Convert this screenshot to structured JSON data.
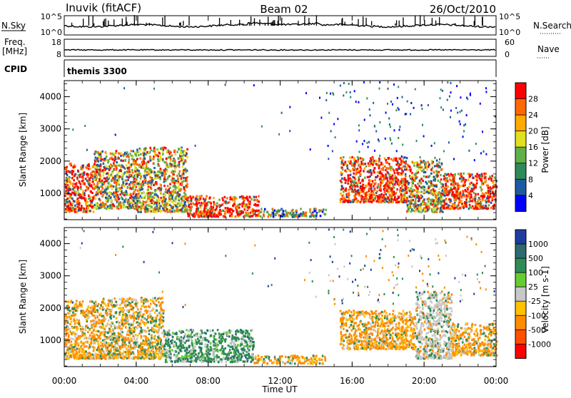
{
  "header": {
    "station": "Inuvik (fitACF)",
    "beam": "Beam 02",
    "date": "26/Oct/2010"
  },
  "panels": {
    "nsky_label": "N.Sky",
    "nsearch_label": "N.Search",
    "nsky_ticks": [
      "10^5",
      "10^0"
    ],
    "nsearch_ticks": [
      "10^5",
      "10^0"
    ],
    "freq_label": "Freq.",
    "freq_unit": "[MHz]",
    "freq_ticks": [
      "18",
      "8"
    ],
    "nave_label": "Nave",
    "nave_ticks": [
      "60",
      "0"
    ],
    "cpid_label": "CPID",
    "cpid_value": "themis 3300"
  },
  "chart_data": [
    {
      "type": "heatmap",
      "title": "",
      "quantity": "Power",
      "colorbar_label": "Power [dB]",
      "colorbar_ticks": [
        "28",
        "24",
        "20",
        "16",
        "12",
        "8",
        "4"
      ],
      "colorbar_colors": [
        "#ff0000",
        "#ff6a00",
        "#ffaa00",
        "#e0e020",
        "#5fb04a",
        "#2e8b57",
        "#1e5aa0",
        "#0000ff"
      ],
      "xlabel": "Time UT",
      "ylabel": "Slant Range [km]",
      "x_ticks": [
        "00:00",
        "04:00",
        "08:00",
        "12:00",
        "16:00",
        "20:00",
        "00:00"
      ],
      "y_ticks": [
        "1000",
        "2000",
        "3000",
        "4000"
      ],
      "xlim": [
        0,
        24
      ],
      "ylim": [
        180,
        4500
      ],
      "regions": [
        {
          "t0": 0.0,
          "t1": 1.6,
          "r0": 400,
          "r1": 1900,
          "level": "high"
        },
        {
          "t0": 1.6,
          "t1": 4.0,
          "r0": 500,
          "r1": 2300,
          "level": "mid"
        },
        {
          "t0": 4.0,
          "t1": 6.8,
          "r0": 400,
          "r1": 2400,
          "level": "mid"
        },
        {
          "t0": 6.8,
          "t1": 10.8,
          "r0": 250,
          "r1": 900,
          "level": "high"
        },
        {
          "t0": 10.8,
          "t1": 14.5,
          "r0": 250,
          "r1": 500,
          "level": "low"
        },
        {
          "t0": 15.3,
          "t1": 19.0,
          "r0": 700,
          "r1": 2100,
          "level": "high"
        },
        {
          "t0": 19.0,
          "t1": 21.0,
          "r0": 400,
          "r1": 2000,
          "level": "mid"
        },
        {
          "t0": 21.0,
          "t1": 24.0,
          "r0": 500,
          "r1": 1600,
          "level": "high"
        }
      ]
    },
    {
      "type": "heatmap",
      "title": "",
      "quantity": "Velocity",
      "colorbar_label": "Velocity [m s-1]",
      "colorbar_ticks": [
        "1000",
        "500",
        "100",
        "25",
        "-25",
        "-100",
        "-500",
        "-1000"
      ],
      "colorbar_colors": [
        "#1e3ca0",
        "#2e6a70",
        "#2e8b57",
        "#66cc33",
        "#c8c8c8",
        "#ffc000",
        "#ff8c00",
        "#ff5000",
        "#ff0000"
      ],
      "xlabel": "Time UT",
      "ylabel": "Slant Range [km]",
      "x_ticks": [
        "00:00",
        "04:00",
        "08:00",
        "12:00",
        "16:00",
        "20:00",
        "00:00"
      ],
      "y_ticks": [
        "1000",
        "2000",
        "3000",
        "4000"
      ],
      "xlim": [
        0,
        24
      ],
      "ylim": [
        180,
        4500
      ],
      "regions": [
        {
          "t0": 0.0,
          "t1": 2.0,
          "r0": 400,
          "r1": 2200,
          "level": "neg"
        },
        {
          "t0": 2.0,
          "t1": 5.5,
          "r0": 400,
          "r1": 2300,
          "level": "mix"
        },
        {
          "t0": 5.5,
          "t1": 10.5,
          "r0": 300,
          "r1": 1300,
          "level": "pos"
        },
        {
          "t0": 10.5,
          "t1": 14.5,
          "r0": 250,
          "r1": 500,
          "level": "neg"
        },
        {
          "t0": 15.3,
          "t1": 19.5,
          "r0": 700,
          "r1": 1900,
          "level": "neg"
        },
        {
          "t0": 19.5,
          "t1": 21.5,
          "r0": 400,
          "r1": 2500,
          "level": "grey"
        },
        {
          "t0": 21.5,
          "t1": 24.0,
          "r0": 500,
          "r1": 1500,
          "level": "neg"
        }
      ]
    }
  ]
}
